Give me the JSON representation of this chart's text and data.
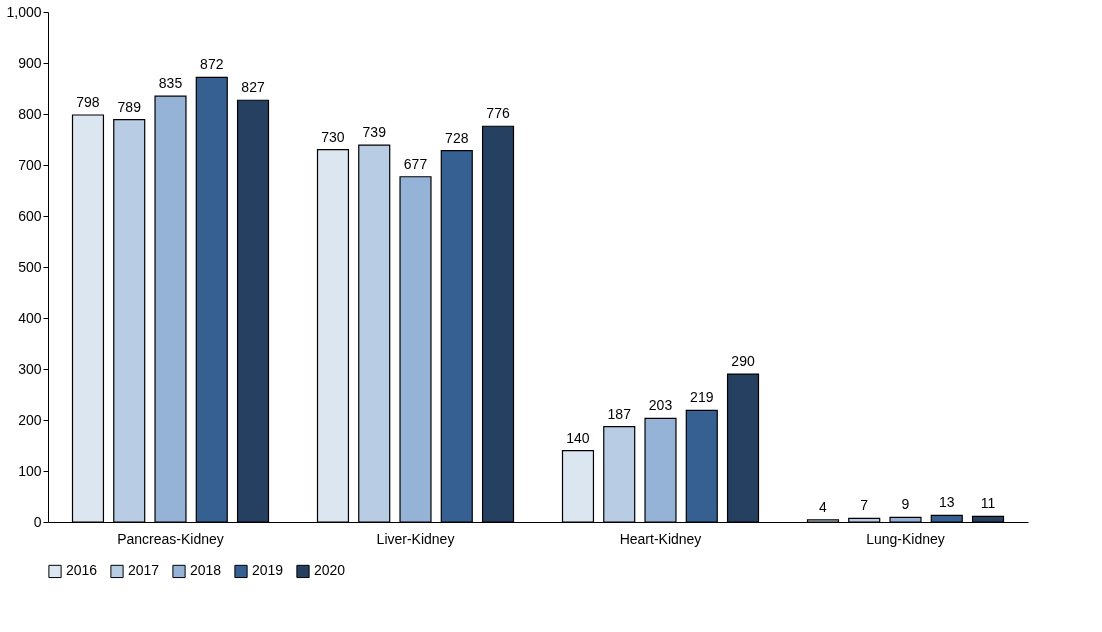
{
  "chart_data": {
    "type": "bar",
    "categories": [
      "Pancreas-Kidney",
      "Liver-Kidney",
      "Heart-Kidney",
      "Lung-Kidney"
    ],
    "series": [
      {
        "name": "2016",
        "color": "#dce6f1",
        "values": [
          798,
          730,
          140,
          4
        ]
      },
      {
        "name": "2017",
        "color": "#b8cce4",
        "values": [
          789,
          739,
          187,
          7
        ]
      },
      {
        "name": "2018",
        "color": "#95b3d7",
        "values": [
          835,
          677,
          203,
          9
        ]
      },
      {
        "name": "2019",
        "color": "#366092",
        "values": [
          872,
          728,
          219,
          13
        ]
      },
      {
        "name": "2020",
        "color": "#254061",
        "values": [
          827,
          776,
          290,
          11
        ]
      }
    ],
    "ylim": [
      0,
      1000
    ],
    "yticks": [
      0,
      100,
      200,
      300,
      400,
      500,
      600,
      700,
      800,
      900,
      {
        "value": 1000,
        "label": "1,000"
      }
    ],
    "grid": false,
    "legend": "bottom",
    "data_labels": true
  }
}
